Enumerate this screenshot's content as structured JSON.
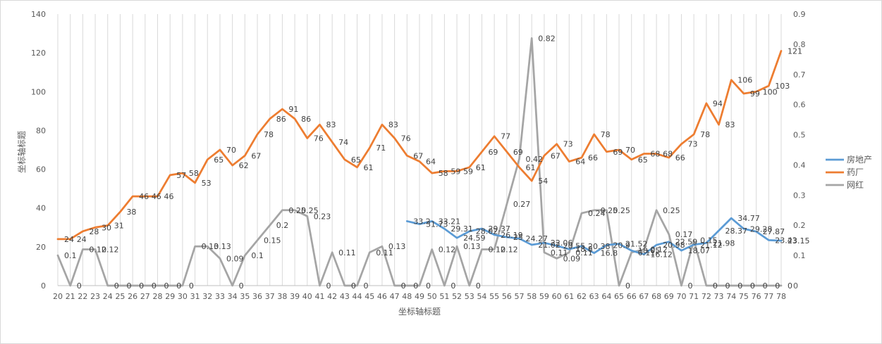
{
  "chart_data": {
    "type": "line",
    "xlabel": "坐标轴标题",
    "ylabel": "坐标轴标题",
    "ylim": [
      0,
      140
    ],
    "y_ticks": [
      "0",
      "20",
      "40",
      "60",
      "80",
      "100",
      "120",
      "140"
    ],
    "y2lim": [
      0,
      0.9
    ],
    "y2_ticks": [
      "0",
      "0.1",
      "0.2",
      "0.3",
      "0.4",
      "0.5",
      "0.6",
      "0.7",
      "0.8",
      "0.9"
    ],
    "grid": "vertical",
    "legend_position": "right",
    "categories": [
      20,
      21,
      22,
      23,
      24,
      25,
      26,
      27,
      28,
      29,
      30,
      31,
      32,
      33,
      34,
      35,
      36,
      37,
      38,
      39,
      40,
      41,
      42,
      43,
      44,
      45,
      46,
      47,
      48,
      49,
      50,
      51,
      52,
      53,
      54,
      55,
      56,
      57,
      58,
      59,
      60,
      61,
      62,
      63,
      64,
      65,
      66,
      67,
      68,
      69,
      70,
      71,
      72,
      73,
      74,
      75,
      76,
      77,
      78
    ],
    "series": [
      {
        "name": "房地产",
        "color": "#5b9bd5",
        "axis": "left",
        "values": [
          null,
          null,
          null,
          null,
          null,
          null,
          null,
          null,
          null,
          null,
          null,
          null,
          null,
          null,
          null,
          null,
          null,
          null,
          null,
          null,
          null,
          null,
          null,
          null,
          null,
          null,
          null,
          null,
          33.2,
          31.73,
          33.21,
          29.31,
          24.59,
          28.02,
          29.37,
          26.19,
          25,
          24.27,
          21.02,
          22.06,
          20.55,
          18.8,
          20.38,
          16.8,
          20.9,
          21.52,
          18.05,
          16.12,
          20.98,
          22.59,
          18.07,
          21.12,
          21.98,
          28.37,
          34.77,
          29.28,
          27.87,
          23.43,
          23.15
        ]
      },
      {
        "name": "药厂",
        "color": "#ed7d31",
        "axis": "left",
        "values": [
          24,
          24,
          28,
          30,
          31,
          38,
          46,
          46,
          46,
          57,
          58,
          53,
          65,
          70,
          62,
          67,
          78,
          86,
          91,
          86,
          76,
          83,
          74,
          65,
          61,
          71,
          83,
          76,
          67,
          64,
          58,
          59,
          59,
          61,
          69,
          77,
          69,
          61,
          54,
          67,
          73,
          64,
          66,
          78,
          69,
          70,
          65,
          68,
          68,
          66,
          73,
          78,
          94,
          83,
          106,
          99,
          100,
          103,
          121
        ]
      },
      {
        "name": "网红",
        "color": "#a5a5a5",
        "axis": "right",
        "values": [
          0.1,
          0,
          0.12,
          0.12,
          0,
          0,
          0,
          0,
          0,
          0,
          0,
          0.13,
          0.13,
          0.09,
          0,
          0.1,
          0.15,
          0.2,
          0.25,
          0.25,
          0.23,
          0,
          0.11,
          0,
          0,
          0.11,
          0.13,
          0,
          0,
          0,
          0.12,
          0,
          0.13,
          0,
          0.12,
          0.12,
          0.27,
          0.42,
          0.82,
          0.11,
          0.09,
          0.11,
          0.24,
          0.25,
          0.25,
          0,
          0.11,
          0.12,
          0.25,
          0.17,
          0,
          0.15,
          0,
          0,
          0,
          0,
          0,
          0,
          0
        ]
      }
    ],
    "labels": {
      "房地产": [
        null,
        null,
        null,
        null,
        null,
        null,
        null,
        null,
        null,
        null,
        null,
        null,
        null,
        null,
        null,
        null,
        null,
        null,
        null,
        null,
        null,
        null,
        null,
        null,
        null,
        null,
        null,
        null,
        "33.2",
        "31.73",
        "33.21",
        "29.31",
        "24.59",
        "28.02",
        "29.37",
        "26.19",
        "25",
        "24.27",
        "21.02",
        "22.06",
        "20.55",
        "18.8",
        "20.38",
        "16.8",
        "20.9",
        "21.52",
        "18.05",
        "16.12",
        "20.98",
        "22.59",
        "18.07",
        "21.12",
        "21.98",
        "28.37",
        "34.77",
        "29.28",
        "27.87",
        "23.43",
        "23.15"
      ],
      "药厂": [
        "24",
        "24",
        "28",
        "30",
        "31",
        "38",
        "46",
        "46",
        "46",
        "57",
        "58",
        "53",
        "65",
        "70",
        "62",
        "67",
        "78",
        "86",
        "91",
        "86",
        "76",
        "83",
        "74",
        "65",
        "61",
        "71",
        "83",
        "76",
        "67",
        "64",
        "58",
        "59",
        "59",
        "61",
        "69",
        "77",
        "69",
        "61",
        "54",
        "67",
        "73",
        "64",
        "66",
        "78",
        "69",
        "70",
        "65",
        "68",
        "68",
        "66",
        "73",
        "78",
        "94",
        "83",
        "106",
        "99",
        "100",
        "103",
        "121"
      ],
      "网红": [
        "0.1",
        "0",
        "0.12",
        "0.12",
        "0",
        "0",
        "0",
        "0",
        "0",
        "0",
        "0",
        "0.13",
        "0.13",
        "0.09",
        "0",
        "0.1",
        "0.15",
        "0.2",
        "0.25",
        "0.25",
        "0.23",
        "0",
        "0.11",
        "0",
        "0",
        "0.11",
        "0.13",
        "0",
        "0",
        "0",
        "0.12",
        "0",
        "0.13",
        "0",
        "0.12",
        "0.12",
        "0.27",
        "0.42",
        "0.82",
        "0.11",
        "0.09",
        "0.11",
        "0.24",
        "0.25",
        "0.25",
        "0",
        "0.11",
        "0.12",
        "0.25",
        "0.17",
        "0",
        "0.15",
        "0",
        "0",
        "0",
        "0",
        "0",
        "0",
        "0"
      ]
    }
  }
}
